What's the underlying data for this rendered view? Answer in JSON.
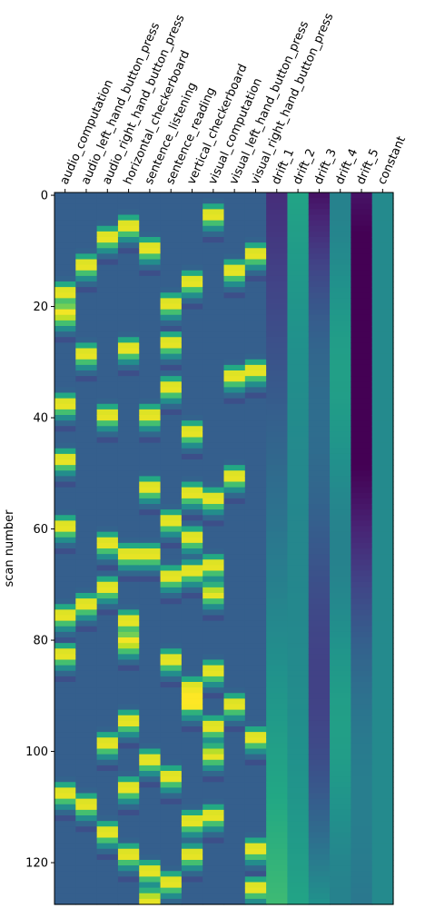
{
  "chart_data": {
    "type": "heatmap",
    "title": "",
    "xlabel": "",
    "ylabel": "scan number",
    "ylim": [
      0,
      128
    ],
    "y_ticks": [
      "0",
      "20",
      "40",
      "60",
      "80",
      "100",
      "120"
    ],
    "colormap": "viridis",
    "colors": {
      "baseline": "#3b6c8e",
      "low": "#440154",
      "high": "#fde725"
    },
    "columns": [
      "audio_computation",
      "audio_left_hand_button_press",
      "audio_right_hand_button_press",
      "horizontal_checkerboard",
      "sentence_listening",
      "sentence_reading",
      "vertical_checkerboard",
      "visual_computation",
      "visual_left_hand_button_press",
      "visual_right_hand_button_press",
      "drift_1",
      "drift_2",
      "drift_3",
      "drift_4",
      "drift_5",
      "constant"
    ],
    "events": [
      [
        17,
        21,
        37,
        47,
        59,
        75,
        82,
        107
      ],
      [
        12,
        28,
        73,
        109
      ],
      [
        7,
        39,
        62,
        70,
        98,
        114
      ],
      [
        5,
        27,
        64,
        76,
        80,
        94,
        106,
        118
      ],
      [
        9,
        39,
        52,
        64,
        101,
        121,
        126
      ],
      [
        19,
        26,
        34,
        58,
        68,
        83,
        104,
        123
      ],
      [
        15,
        42,
        53,
        61,
        67,
        88,
        91,
        112,
        118
      ],
      [
        3,
        54,
        66,
        71,
        85,
        95,
        100,
        111
      ],
      [
        13,
        32,
        50,
        91
      ],
      [
        10,
        31,
        97,
        117,
        124
      ]
    ],
    "drifts": [
      {
        "name": "drift_1",
        "shape": "linear",
        "start": -1,
        "end": 1
      },
      {
        "name": "drift_2",
        "shape": "quadratic",
        "start": 0.55,
        "end": 0.55
      },
      {
        "name": "drift_3",
        "shape": "cubic",
        "start": -1,
        "end": 1
      },
      {
        "name": "drift_4",
        "shape": "quartic",
        "start": 0.55,
        "end": 0.55
      },
      {
        "name": "drift_5",
        "shape": "quintic",
        "start": -1,
        "end": 1
      },
      {
        "name": "constant",
        "shape": "constant",
        "start": 0.35,
        "end": 0.35
      }
    ]
  }
}
